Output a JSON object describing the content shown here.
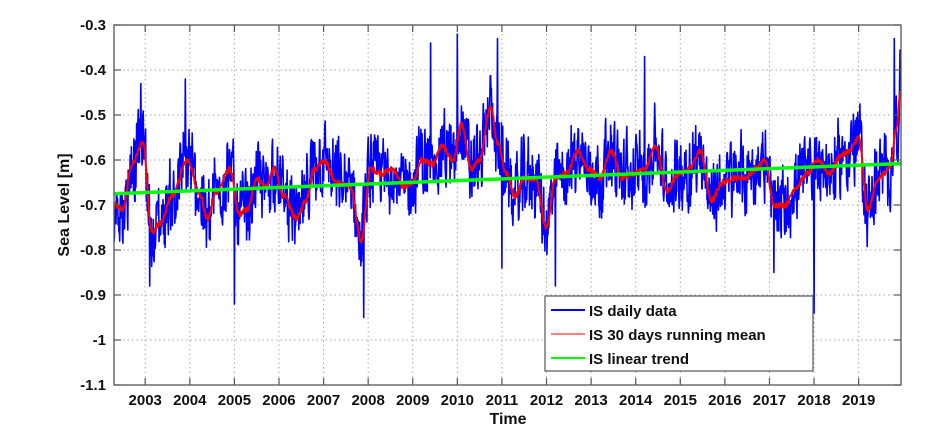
{
  "chart_data": {
    "type": "line",
    "title": "",
    "xlabel": "Time",
    "ylabel": "Sea Level [m]",
    "xlim": [
      2002.3,
      2019.95
    ],
    "ylim": [
      -1.1,
      -0.3
    ],
    "grid": true,
    "legend_position": "lower right",
    "x_ticks": [
      "2003",
      "2004",
      "2005",
      "2006",
      "2007",
      "2008",
      "2009",
      "2010",
      "2011",
      "2012",
      "2013",
      "2014",
      "2015",
      "2016",
      "2017",
      "2018",
      "2019"
    ],
    "y_ticks": [
      "-0.3",
      "-0.4",
      "-0.5",
      "-0.6",
      "-0.7",
      "-0.8",
      "-0.9",
      "-1",
      "-1.1"
    ],
    "series": [
      {
        "name": "IS daily data",
        "color": "#0000ff",
        "description": "Daily sea level, fluctuating around the running mean; peaks near -0.32 (2010) and -0.33 (late 2019), minima near -0.95 (2008) and -0.92 (2005)",
        "notable_points": [
          {
            "x": 2002.9,
            "y": -0.43
          },
          {
            "x": 2003.1,
            "y": -0.88
          },
          {
            "x": 2003.9,
            "y": -0.42
          },
          {
            "x": 2005.0,
            "y": -0.92
          },
          {
            "x": 2007.9,
            "y": -0.95
          },
          {
            "x": 2009.4,
            "y": -0.34
          },
          {
            "x": 2010.0,
            "y": -0.32
          },
          {
            "x": 2010.9,
            "y": -0.33
          },
          {
            "x": 2011.0,
            "y": -0.84
          },
          {
            "x": 2012.2,
            "y": -0.88
          },
          {
            "x": 2014.2,
            "y": -0.37
          },
          {
            "x": 2017.1,
            "y": -0.85
          },
          {
            "x": 2018.0,
            "y": -0.94
          },
          {
            "x": 2019.8,
            "y": -0.33
          }
        ]
      },
      {
        "name": "IS 30 days running mean",
        "color": "#ff0000",
        "x": [
          2002.3,
          2002.5,
          2002.7,
          2002.95,
          2003.15,
          2003.35,
          2003.6,
          2003.95,
          2004.2,
          2004.4,
          2004.6,
          2004.9,
          2005.1,
          2005.3,
          2005.5,
          2005.7,
          2005.9,
          2006.1,
          2006.4,
          2006.6,
          2006.8,
          2007.0,
          2007.3,
          2007.6,
          2007.85,
          2008.05,
          2008.3,
          2008.55,
          2008.8,
          2009.0,
          2009.2,
          2009.45,
          2009.65,
          2009.9,
          2010.1,
          2010.3,
          2010.5,
          2010.75,
          2010.9,
          2011.1,
          2011.3,
          2011.5,
          2011.75,
          2012.0,
          2012.2,
          2012.45,
          2012.7,
          2012.95,
          2013.2,
          2013.45,
          2013.7,
          2013.95,
          2014.2,
          2014.45,
          2014.7,
          2014.95,
          2015.2,
          2015.45,
          2015.7,
          2015.95,
          2016.2,
          2016.45,
          2016.7,
          2016.9,
          2017.1,
          2017.35,
          2017.6,
          2017.85,
          2018.1,
          2018.35,
          2018.6,
          2018.8,
          2019.0,
          2019.2,
          2019.45,
          2019.7,
          2019.85,
          2019.95
        ],
        "y": [
          -0.7,
          -0.71,
          -0.61,
          -0.56,
          -0.76,
          -0.74,
          -0.68,
          -0.6,
          -0.67,
          -0.73,
          -0.67,
          -0.62,
          -0.72,
          -0.71,
          -0.64,
          -0.66,
          -0.62,
          -0.68,
          -0.73,
          -0.69,
          -0.62,
          -0.6,
          -0.65,
          -0.66,
          -0.78,
          -0.62,
          -0.63,
          -0.62,
          -0.66,
          -0.65,
          -0.6,
          -0.61,
          -0.57,
          -0.6,
          -0.52,
          -0.62,
          -0.6,
          -0.48,
          -0.56,
          -0.63,
          -0.68,
          -0.64,
          -0.64,
          -0.75,
          -0.64,
          -0.63,
          -0.58,
          -0.62,
          -0.64,
          -0.58,
          -0.64,
          -0.63,
          -0.62,
          -0.57,
          -0.67,
          -0.63,
          -0.62,
          -0.58,
          -0.69,
          -0.65,
          -0.64,
          -0.64,
          -0.62,
          -0.6,
          -0.7,
          -0.7,
          -0.66,
          -0.63,
          -0.6,
          -0.63,
          -0.59,
          -0.58,
          -0.55,
          -0.71,
          -0.64,
          -0.62,
          -0.53,
          -0.44
        ]
      },
      {
        "name": "IS linear trend",
        "color": "#00ff00",
        "x": [
          2002.3,
          2019.95
        ],
        "y": [
          -0.675,
          -0.608
        ]
      }
    ]
  },
  "axes": {
    "xlabel": "Time",
    "ylabel": "Sea Level [m]"
  },
  "legend": {
    "items": [
      {
        "label": "IS daily data",
        "color": "#0000ff"
      },
      {
        "label": "IS 30 days running mean",
        "color": "#ff8080"
      },
      {
        "label": "IS linear trend",
        "color": "#00ff00"
      }
    ]
  }
}
